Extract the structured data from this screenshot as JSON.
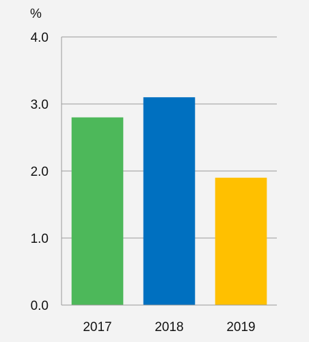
{
  "chart_data": {
    "type": "bar",
    "title": "",
    "unit_label": "%",
    "xlabel": "",
    "ylabel": "",
    "categories": [
      "2017",
      "2018",
      "2019"
    ],
    "values": [
      2.8,
      3.1,
      1.9
    ],
    "bar_colors": [
      "#4db85a",
      "#0070c0",
      "#ffc000"
    ],
    "ylim": [
      0,
      4
    ],
    "yticks": [
      0,
      1,
      2,
      3,
      4
    ],
    "ytick_labels": [
      "0.0",
      "1.0",
      "2.0",
      "3.0",
      "4.0"
    ],
    "grid": true,
    "gridline_color": "#9a9a9a",
    "background_color": "#f3f3f3"
  }
}
